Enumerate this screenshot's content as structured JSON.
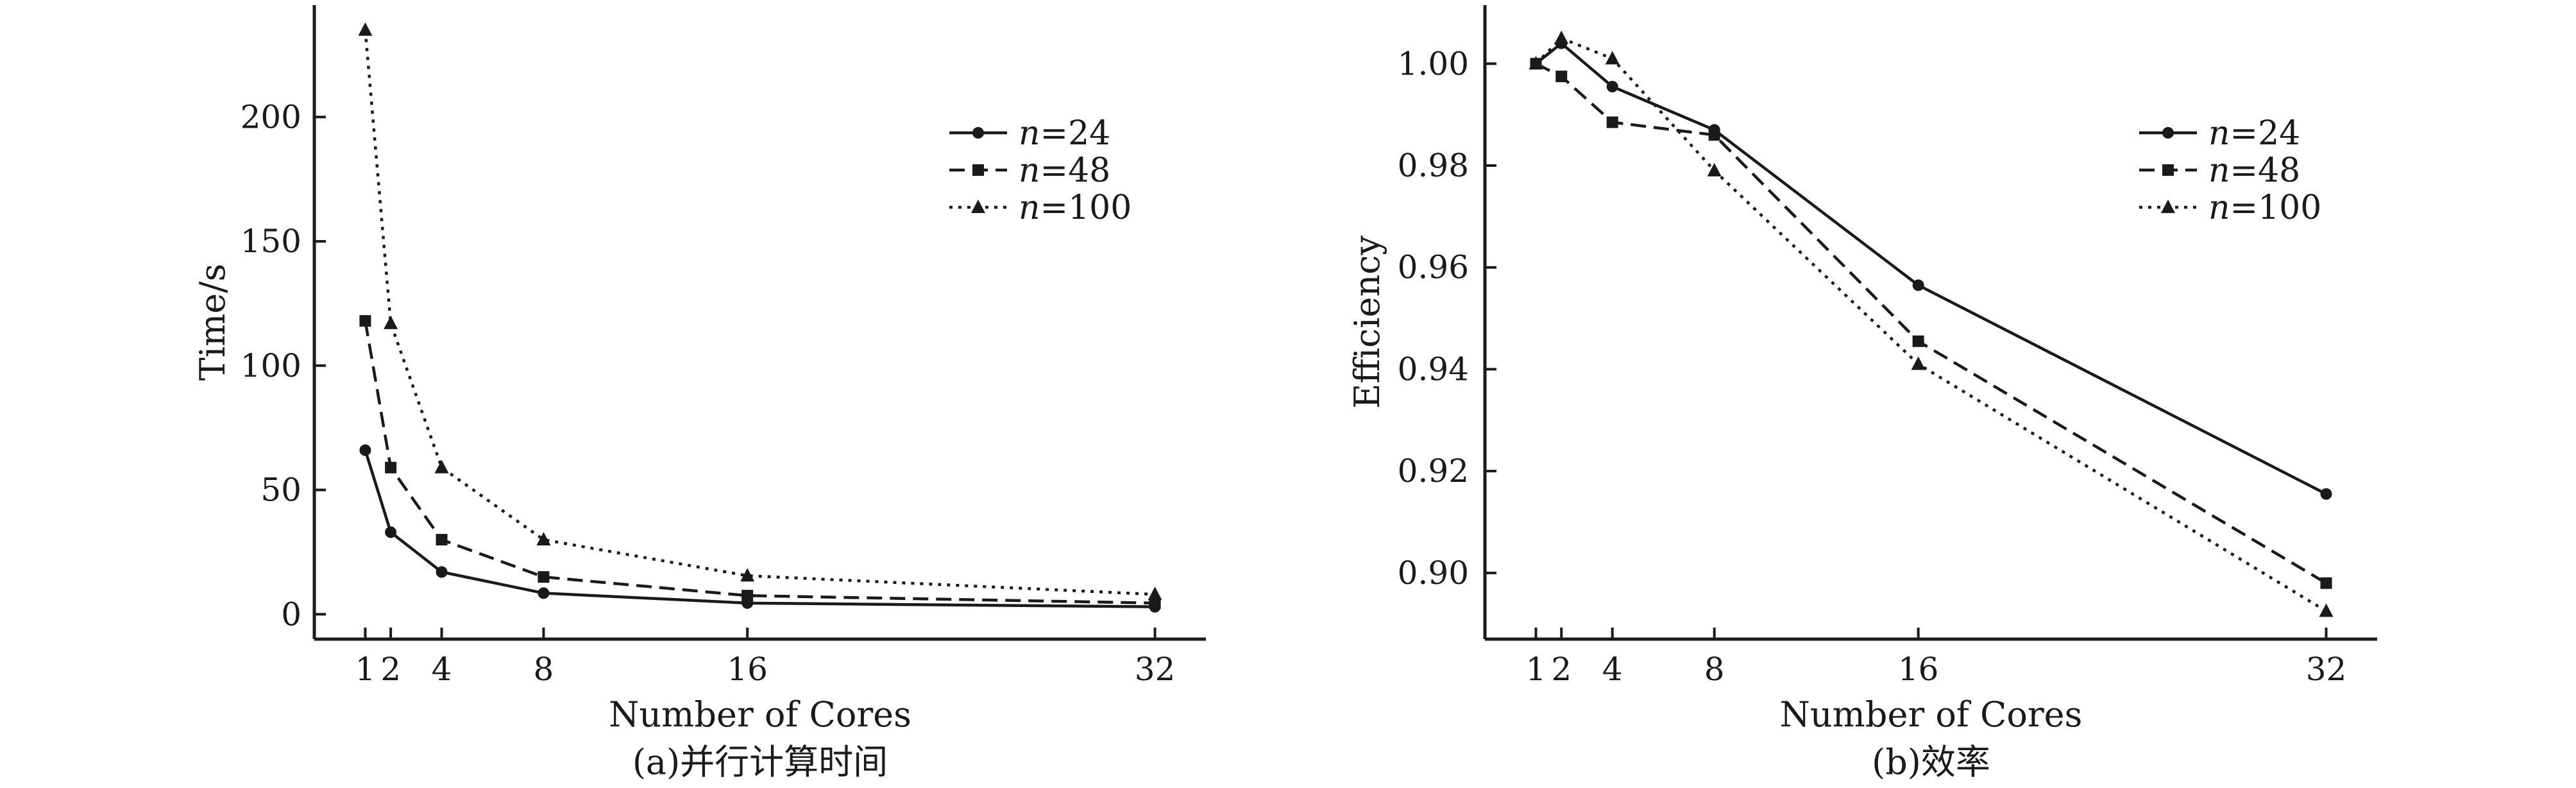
{
  "chart_data": [
    {
      "type": "line",
      "caption": "(a)并行计算时间",
      "xlabel": "Number of  Cores",
      "ylabel": "Time/s",
      "x": [
        1,
        2,
        4,
        8,
        16,
        32
      ],
      "xticks": [
        "1",
        "2",
        "4",
        "8",
        "16",
        "32"
      ],
      "xlim": [
        -1,
        34
      ],
      "ylim": [
        -10,
        245
      ],
      "yticks": [
        "0",
        "50",
        "100",
        "150",
        "200"
      ],
      "ytick_values": [
        0,
        50,
        100,
        150,
        200
      ],
      "legend_position": "top-right",
      "series": [
        {
          "name": "n=24",
          "var": "n",
          "value": "=24",
          "style": "solid",
          "marker": "circle",
          "values": [
            66,
            33,
            17,
            8.5,
            4.5,
            3
          ]
        },
        {
          "name": "n=48",
          "var": "n",
          "value": "=48",
          "style": "dashed",
          "marker": "square",
          "values": [
            118,
            59,
            30,
            15,
            7.5,
            4.5
          ]
        },
        {
          "name": "n=100",
          "var": "n",
          "value": "=100",
          "style": "dotted",
          "marker": "triangle",
          "values": [
            235,
            117,
            59,
            30,
            15.5,
            8
          ]
        }
      ]
    },
    {
      "type": "line",
      "caption": "(b)效率",
      "xlabel": "Number of  Cores",
      "ylabel": "Efficiency",
      "x": [
        1,
        2,
        4,
        8,
        16,
        32
      ],
      "xticks": [
        "1",
        "2",
        "4",
        "8",
        "16",
        "32"
      ],
      "xlim": [
        -1,
        34
      ],
      "ylim": [
        0.887,
        1.0115
      ],
      "yticks": [
        "0.90",
        "0.92",
        "0.94",
        "0.96",
        "0.98",
        "1.00"
      ],
      "ytick_values": [
        0.9,
        0.92,
        0.94,
        0.96,
        0.98,
        1.0
      ],
      "legend_position": "top-right",
      "series": [
        {
          "name": "n=24",
          "var": "n",
          "value": "=24",
          "style": "solid",
          "marker": "circle",
          "values": [
            1.0,
            1.004,
            0.9955,
            0.987,
            0.9565,
            0.9155
          ]
        },
        {
          "name": "n=48",
          "var": "n",
          "value": "=48",
          "style": "dashed",
          "marker": "square",
          "values": [
            1.0,
            0.9975,
            0.9885,
            0.986,
            0.9455,
            0.898
          ]
        },
        {
          "name": "n=100",
          "var": "n",
          "value": "=100",
          "style": "dotted",
          "marker": "triangle",
          "values": [
            1.0,
            1.005,
            1.001,
            0.979,
            0.941,
            0.8925
          ]
        }
      ]
    }
  ]
}
